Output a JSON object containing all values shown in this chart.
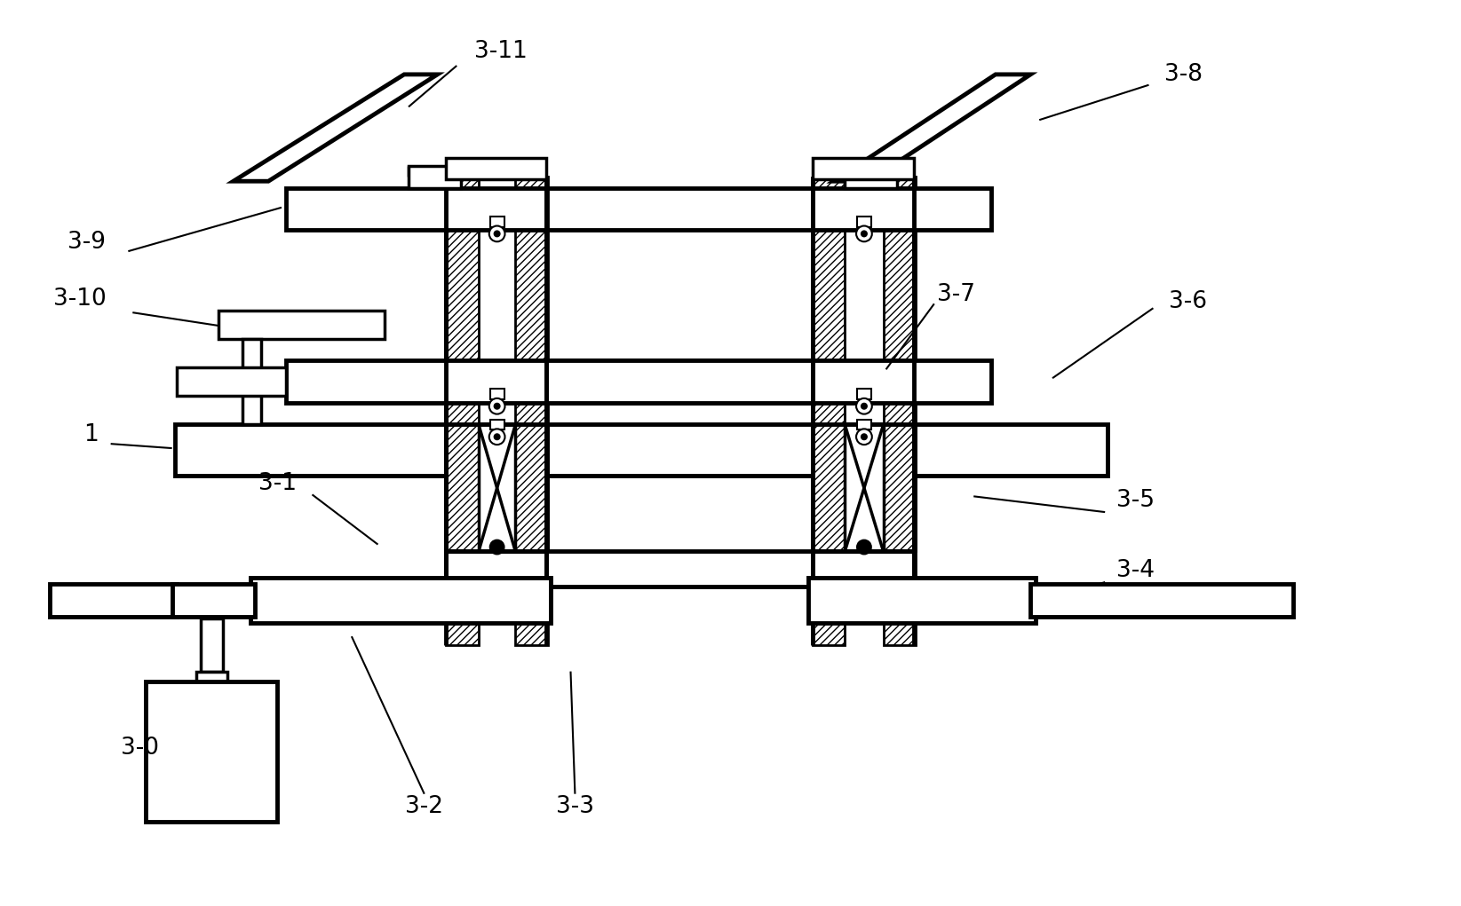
{
  "bg_color": "#ffffff",
  "lw": 2.5,
  "lw_t": 1.5,
  "lw_th": 3.5,
  "figsize": [
    16.45,
    10.21
  ],
  "dpi": 100
}
